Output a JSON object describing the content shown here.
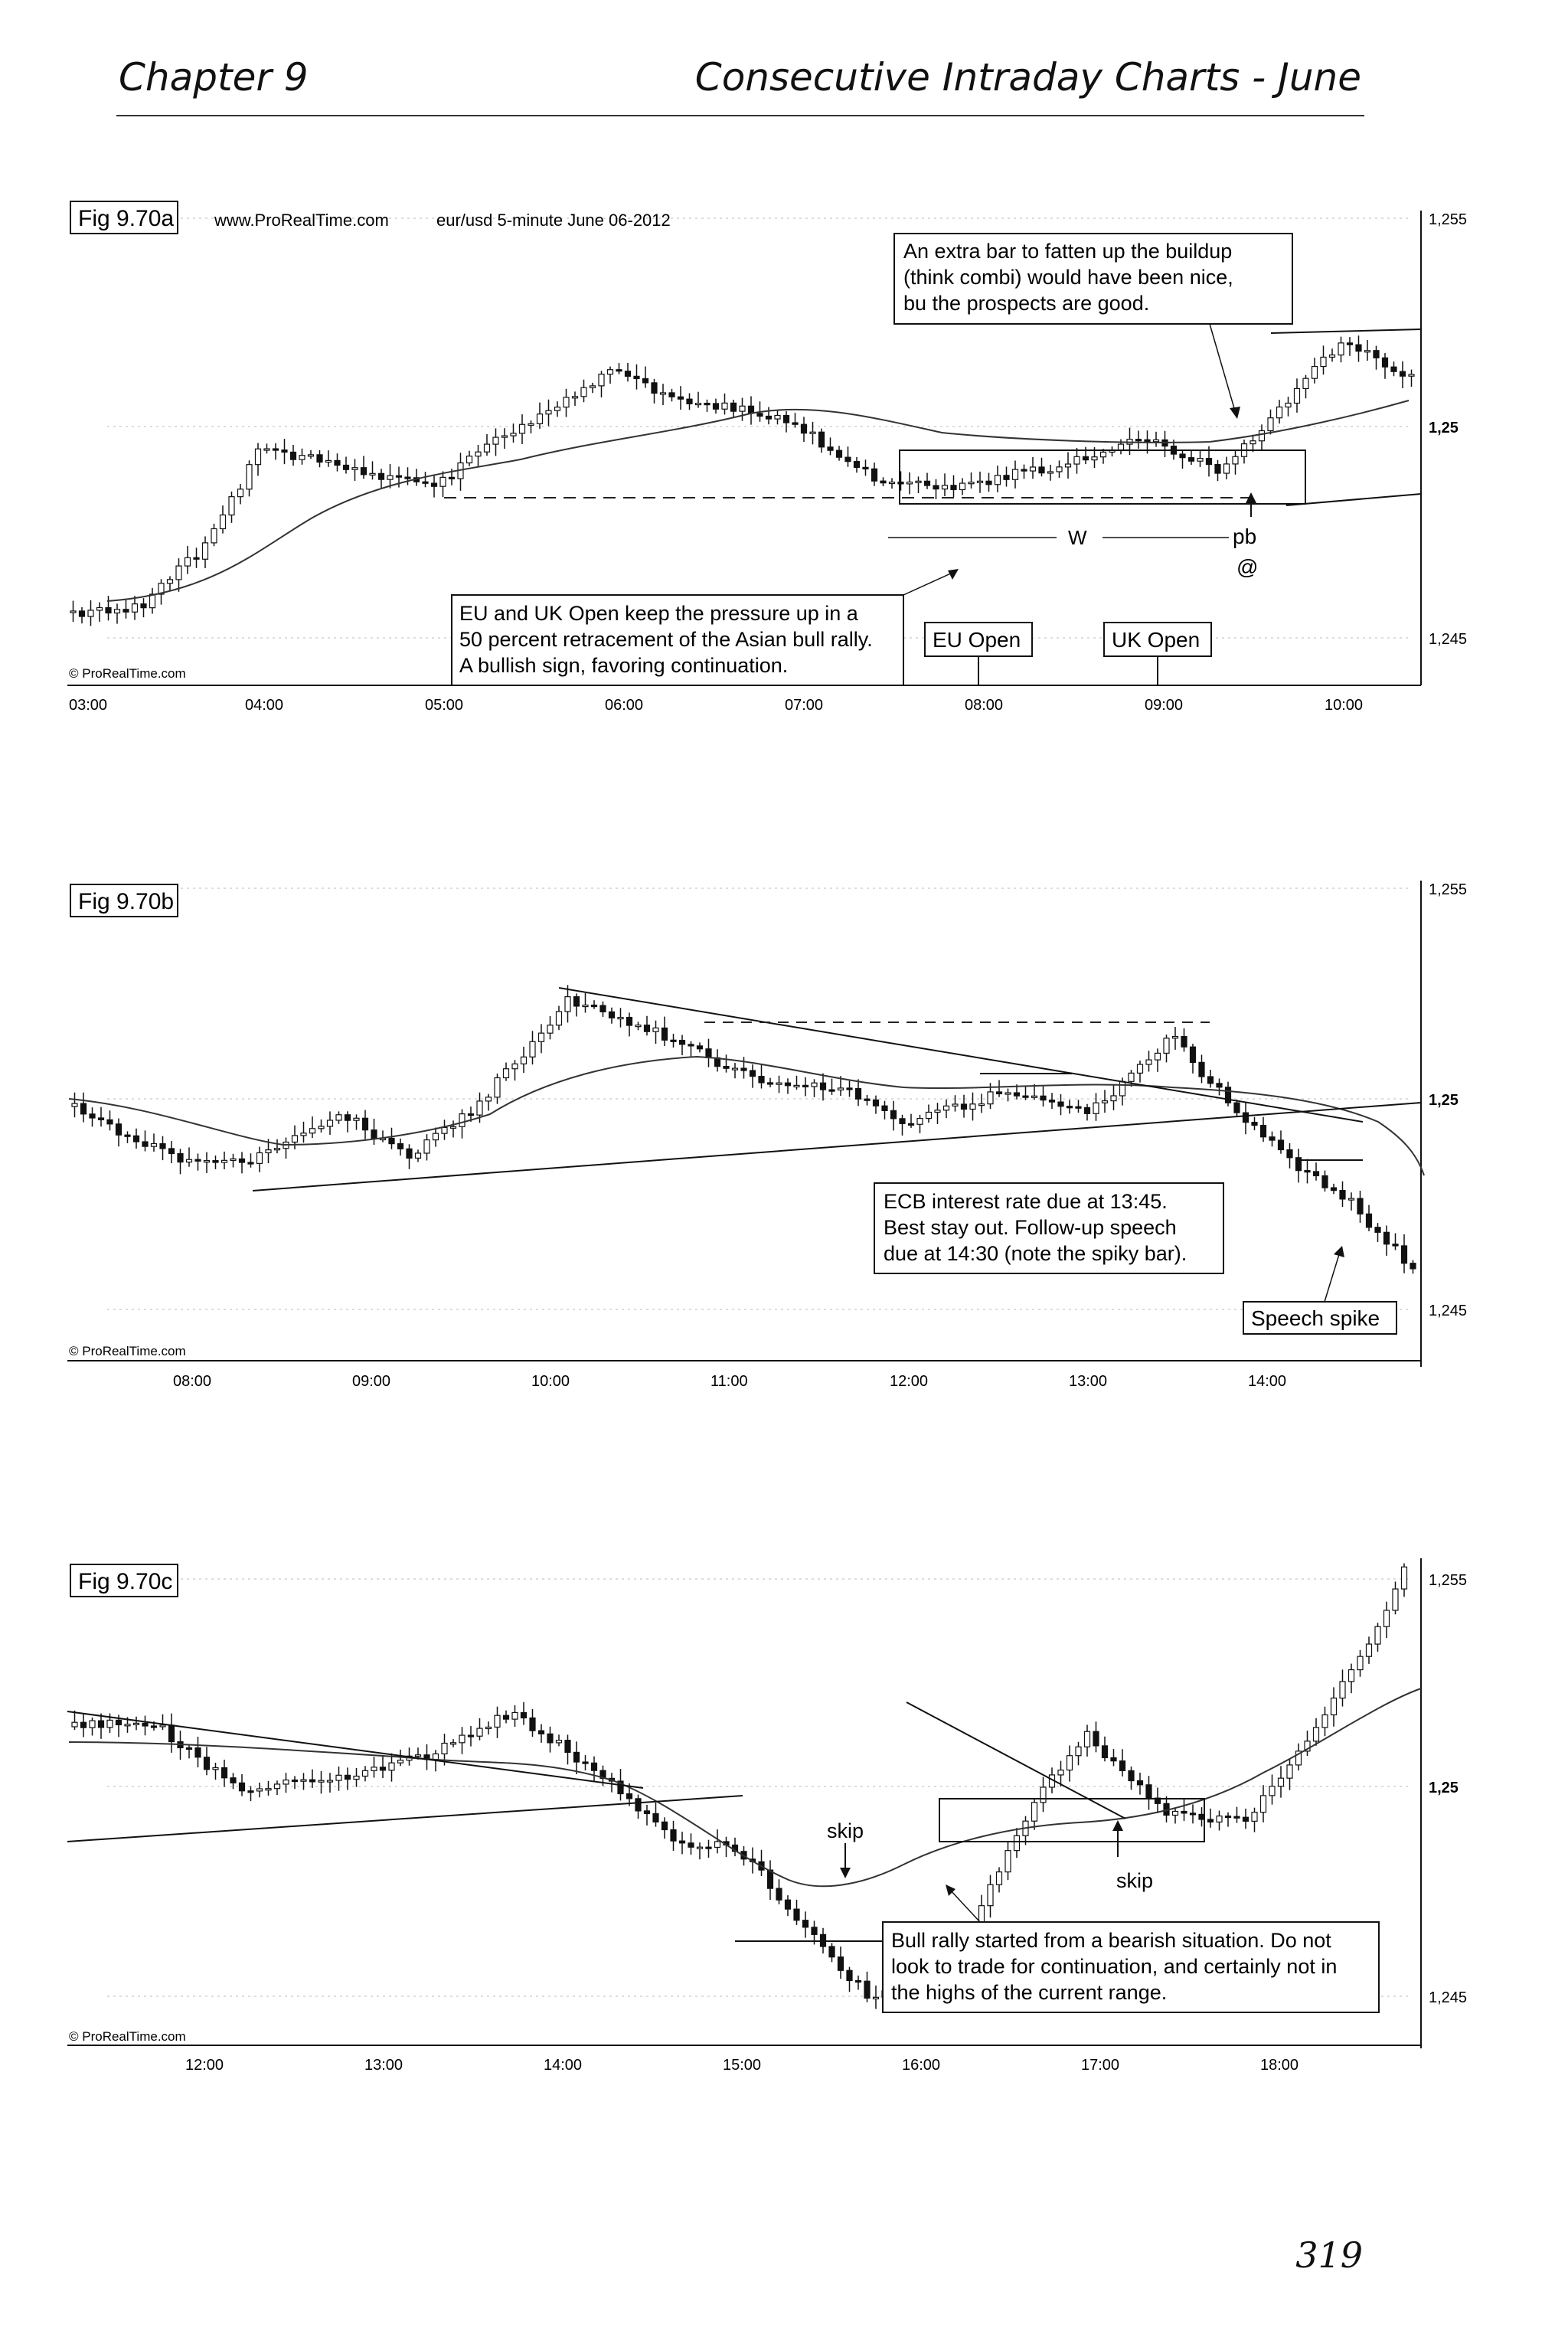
{
  "header": {
    "chapter": "Chapter 9",
    "title": "Consecutive Intraday Charts - June"
  },
  "page_number": "319",
  "colors": {
    "ink": "#111111",
    "candle_up": "#ffffff",
    "candle_down": "#111111",
    "grid": "#b5b5b5"
  },
  "figures": [
    {
      "fig_label": "Fig 9.70a",
      "source": "www.ProRealTime.com",
      "instrument": "eur/usd 5-minute June 06-2012",
      "watermark": "© ProRealTime.com",
      "y_ticks": [
        "1,255",
        "1,25",
        "1,245"
      ],
      "x_ticks": [
        "03:00",
        "04:00",
        "05:00",
        "06:00",
        "07:00",
        "08:00",
        "09:00",
        "10:00"
      ],
      "annotations": {
        "note_top": [
          "An extra bar to fatten up the buildup",
          "(think combi) would have been nice,",
          "bu the prospects are good."
        ],
        "note_bottom": [
          "EU and UK Open keep the pressure up in a",
          "50 percent retracement of the Asian bull rally.",
          "A bullish sign, favoring continuation."
        ],
        "eu_open": "EU Open",
        "uk_open": "UK Open",
        "w": "W",
        "pb": "pb",
        "at": "@"
      }
    },
    {
      "fig_label": "Fig 9.70b",
      "watermark": "© ProRealTime.com",
      "y_ticks": [
        "1,255",
        "1,25",
        "1,245"
      ],
      "x_ticks": [
        "08:00",
        "09:00",
        "10:00",
        "11:00",
        "12:00",
        "13:00",
        "14:00"
      ],
      "annotations": {
        "note": [
          "ECB interest rate due at 13:45.",
          "Best stay out. Follow-up speech",
          "due at 14:30 (note the spiky bar)."
        ],
        "speech_spike": "Speech spike"
      }
    },
    {
      "fig_label": "Fig 9.70c",
      "watermark": "© ProRealTime.com",
      "y_ticks": [
        "1,255",
        "1,25",
        "1,245"
      ],
      "x_ticks": [
        "12:00",
        "13:00",
        "14:00",
        "15:00",
        "16:00",
        "17:00",
        "18:00"
      ],
      "annotations": {
        "note": [
          "Bull rally started from a bearish situation. Do not",
          "look to trade for continuation, and certainly not in",
          "the highs of the current range."
        ],
        "skip_left": "skip",
        "skip_right": "skip"
      }
    }
  ]
}
